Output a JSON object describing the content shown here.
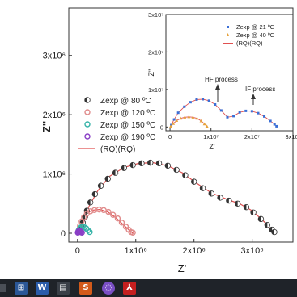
{
  "chart_data": [
    {
      "type": "scatter",
      "xlabel": "Z'",
      "ylabel": "Z''",
      "xticks": [
        "0",
        "1x10⁶",
        "2x10⁶",
        "3x10⁶"
      ],
      "yticks": [
        "0",
        "1x10⁶",
        "2x10⁶",
        "3x10⁶"
      ],
      "xlim": [
        -150000,
        3700000
      ],
      "ylim": [
        -150000,
        3800000
      ],
      "legend_position": "middle-left",
      "series": [
        {
          "name": "Zexp @ 80 ºC",
          "marker": "half-filled-circle",
          "color": "#3a3a3a",
          "x": [
            50000.0,
            70000.0,
            90000.0,
            130000.0,
            160000.0,
            220000.0,
            300000.0,
            400000.0,
            520000.0,
            650000.0,
            800000.0,
            950000.0,
            1100000.0,
            1250000.0,
            1400000.0,
            1550000.0,
            1700000.0,
            1850000.0,
            2000000.0,
            2150000.0,
            2300000.0,
            2450000.0,
            2600000.0,
            2750000.0,
            2900000.0,
            3020000.0,
            3150000.0,
            3260000.0,
            3340000.0,
            3380000.0
          ],
          "y": [
            20000.0,
            100000.0,
            180000.0,
            280000.0,
            380000.0,
            520000.0,
            660000.0,
            800000.0,
            920000.0,
            1020000.0,
            1100000.0,
            1150000.0,
            1180000.0,
            1190000.0,
            1180000.0,
            1140000.0,
            1070000.0,
            980000.0,
            870000.0,
            760000.0,
            670000.0,
            600000.0,
            550000.0,
            500000.0,
            440000.0,
            350000.0,
            240000.0,
            140000.0,
            60000.0,
            20000.0
          ]
        },
        {
          "name": "Zexp @ 120 ºC",
          "marker": "circle",
          "color": "#e08b8b",
          "x": [
            20000.0,
            40000.0,
            70000.0,
            110000.0,
            160000.0,
            220000.0,
            290000.0,
            370000.0,
            450000.0,
            530000.0,
            610000.0,
            690000.0,
            760000.0,
            830000.0,
            880000.0,
            920000.0,
            950000.0
          ],
          "y": [
            40000.0,
            120000.0,
            200000.0,
            270000.0,
            330000.0,
            370000.0,
            390000.0,
            400000.0,
            390000.0,
            360000.0,
            310000.0,
            250000.0,
            180000.0,
            110000.0,
            60000.0,
            20000.0,
            10000.0
          ]
        },
        {
          "name": "Zexp @ 150 ºC",
          "marker": "circle",
          "color": "#36b3a8",
          "x": [
            10000.0,
            20000.0,
            40000.0,
            60000.0,
            90000.0,
            120000.0,
            150000.0,
            180000.0,
            210000.0
          ],
          "y": [
            20000.0,
            50000.0,
            80000.0,
            100000.0,
            110000.0,
            100000.0,
            80000.0,
            50000.0,
            20000.0
          ],
          "label_values_approximate": true
        },
        {
          "name": "Zexp @ 190 ºC",
          "marker": "circle",
          "color": "#8a3fc6",
          "x": [
            5000.0,
            10000.0,
            20000.0,
            30000.0,
            45000.0,
            60000.0,
            75000.0
          ],
          "y": [
            10000.0,
            25000.0,
            35000.0,
            40000.0,
            35000.0,
            25000.0,
            10000.0
          ]
        },
        {
          "name": "(RQ)(RQ)",
          "type": "line",
          "color": "#e05050",
          "fit_curves": [
            {
              "x": [
                30000.0,
                100000.0,
                200000.0,
                350000.0,
                550000.0,
                800000.0,
                1050000.0,
                1300000.0,
                1550000.0,
                1800000.0,
                2050000.0,
                2300000.0,
                2550000.0,
                2800000.0,
                3000000.0,
                3200000.0,
                3320000.0,
                3380000.0
              ],
              "y": [
                0.0,
                220000.0,
                460000.0,
                720000.0,
                960000.0,
                1110000.0,
                1180000.0,
                1190000.0,
                1140000.0,
                1020000.0,
                840000.0,
                680000.0,
                580000.0,
                490000.0,
                380000.0,
                200000.0,
                70000.0,
                0.0
              ]
            },
            {
              "x": [
                10000.0,
                60000.0,
                140000.0,
                250000.0,
                380000.0,
                520000.0,
                660000.0,
                790000.0,
                890000.0,
                950000.0
              ],
              "y": [
                0.0,
                180000.0,
                320000.0,
                390000.0,
                400000.0,
                360000.0,
                260000.0,
                140000.0,
                50000.0,
                0.0
              ]
            }
          ]
        }
      ]
    },
    {
      "type": "scatter",
      "role": "inset",
      "xlabel": "Z'",
      "ylabel": "Z''",
      "xticks": [
        "0",
        "1x10⁷",
        "2x10⁷",
        "3x10⁷"
      ],
      "yticks": [
        "0",
        "1x10⁷",
        "2x10⁷",
        "3x10⁷"
      ],
      "xlim": [
        -1000000,
        30000000
      ],
      "ylim": [
        -1000000,
        30000000
      ],
      "annotations": [
        "HF process",
        "IF process"
      ],
      "legend_position": "top-right",
      "series": [
        {
          "name": "Zexp @ 21 ºC",
          "marker": "square",
          "color": "#3b6fd6",
          "x": [
            300000.0,
            1000000.0,
            2000000.0,
            3500000.0,
            5000000.0,
            6500000.0,
            8000000.0,
            9500000.0,
            11000000.0,
            12500000.0,
            14000000.0,
            15500000.0,
            17000000.0,
            18500000.0,
            20000000.0,
            21500000.0,
            23000000.0,
            24500000.0,
            25500000.0,
            26000000.0
          ],
          "y": [
            500000.0,
            2000000.0,
            3800000.0,
            5400000.0,
            6600000.0,
            7300000.0,
            7400000.0,
            7000000.0,
            6000000.0,
            4400000.0,
            2600000.0,
            2900000.0,
            3900000.0,
            4300000.0,
            4200000.0,
            3700000.0,
            2800000.0,
            1600000.0,
            700000.0,
            200000.0
          ]
        },
        {
          "name": "Zexp @ 40 ºC",
          "marker": "triangle",
          "color": "#e6a23c",
          "x": [
            200000.0,
            800000.0,
            1600000.0,
            2600000.0,
            3600000.0,
            4600000.0,
            5600000.0,
            6600000.0,
            7600000.0,
            8400000.0,
            9000000.0
          ],
          "y": [
            200000.0,
            900000.0,
            1700000.0,
            2300000.0,
            2600000.0,
            2700000.0,
            2600000.0,
            2300000.0,
            1600000.0,
            800000.0,
            200000.0
          ]
        },
        {
          "name": "(RQ)(RQ)",
          "type": "line",
          "color": "#e05050"
        }
      ]
    }
  ],
  "taskbar": {
    "icons": [
      "windows-icon",
      "word-icon",
      "file-explorer-icon",
      "photoshop-icon",
      "viber-icon",
      "acrobat-icon"
    ]
  }
}
